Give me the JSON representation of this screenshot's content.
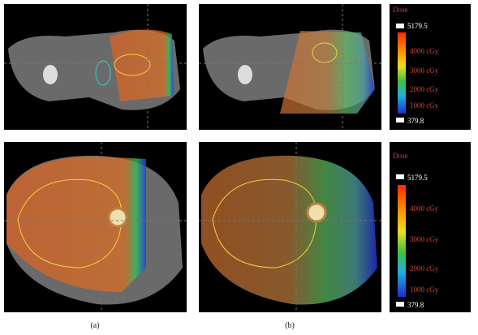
{
  "panels": [
    {
      "label": "(a)"
    },
    {
      "label": "(b)"
    }
  ],
  "colorbars": [
    {
      "title": "Dose",
      "max": "5179.5",
      "labels": [
        "4000 cGy",
        "3000 cGy",
        "2000 cGy",
        "1000 cGy"
      ],
      "min": "379.8"
    },
    {
      "title": "Dose",
      "max": "5179.5",
      "labels": [
        "4000 cGy",
        "3000 cGy",
        "2000 cGy",
        "1000 cGy"
      ],
      "min": "379.8"
    }
  ]
}
